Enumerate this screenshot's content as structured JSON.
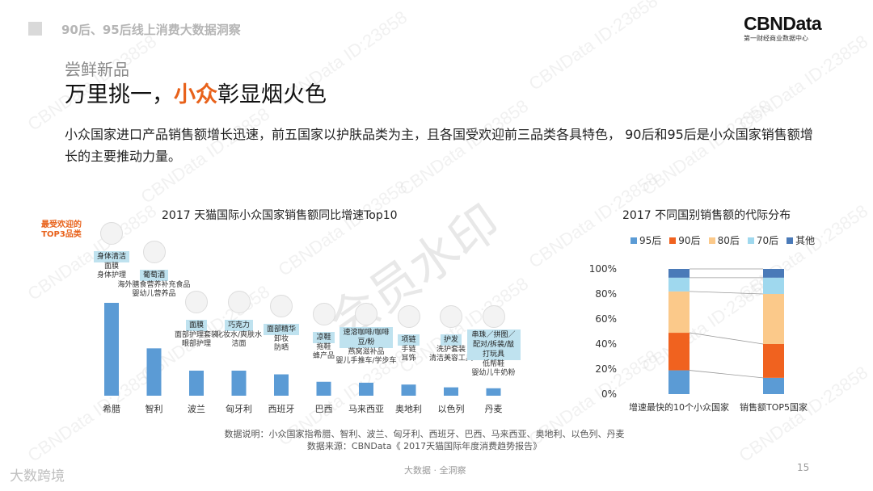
{
  "header": {
    "deck_title": "90后、95后线上消费大数据洞察",
    "logo_main": "CBNData",
    "logo_sub": "第一财经商业数据中心"
  },
  "section_label": "尝鲜新品",
  "headline": {
    "part1": "万里挑一，",
    "highlight": "小众",
    "part2": "彰显烟火色"
  },
  "description": "小众国家进口产品销售额增长迅速，前五国家以护肤品类为主，且各国受欢迎前三品类各具特色， 90后和95后是小众国家销售额增长的主要推动力量。",
  "callout": "最受欢迎的TOP3品类",
  "notes": {
    "definition": "数据说明：小众国家指希腊、智利、波兰、匈牙利、西班牙、巴西、马来西亚、奥地利、以色列、丹麦",
    "source": "数据来源：CBNData《 2017天猫国际年度消费趋势报告》"
  },
  "footer": {
    "left": "大数跨境",
    "center": "大数据 · 全洞察",
    "page": "15"
  },
  "watermark_text": "CBNData ID:23858",
  "watermark_stamp": "会员水印",
  "colors": {
    "bar": "#5b9bd5",
    "accent": "#e8611a",
    "tag_bg": "#bfe2ef",
    "g95": "#5b9bd5",
    "g90": "#f0621f",
    "g80": "#fbc98a",
    "g70": "#9fd8ee",
    "other": "#4a7ab8"
  },
  "chart_data": [
    {
      "type": "bar",
      "title": "2017 天猫国际小众国家销售额同比增速Top10",
      "categories": [
        "希腊",
        "智利",
        "波兰",
        "匈牙利",
        "西班牙",
        "巴西",
        "马来西亚",
        "奥地利",
        "以色列",
        "丹麦"
      ],
      "values": [
        100,
        51,
        27,
        27,
        23,
        15,
        14,
        12,
        9,
        8
      ],
      "top3": [
        {
          "tag": "身体清洁",
          "lines": [
            "面膜",
            "身体护理"
          ]
        },
        {
          "tag": "葡萄酒",
          "lines": [
            "海外膳食营养补充食品",
            "婴幼儿营养品"
          ]
        },
        {
          "tag": "面膜",
          "lines": [
            "面部护理套装",
            "眼部护理"
          ]
        },
        {
          "tag": "巧克力",
          "lines": [
            "化妆水/爽肤水",
            "洁面"
          ]
        },
        {
          "tag": "面部精华",
          "lines": [
            "卸妆",
            "防晒"
          ]
        },
        {
          "tag": "凉鞋",
          "lines": [
            "拖鞋",
            "蜂产品"
          ]
        },
        {
          "tag": "速溶咖啡/咖啡豆/粉",
          "lines": [
            "燕窝滋补品",
            "婴儿手推车/学步车"
          ]
        },
        {
          "tag": "项链",
          "lines": [
            "手链",
            "耳饰"
          ]
        },
        {
          "tag": "护发",
          "lines": [
            "洗护套装",
            "清洁美容工具"
          ]
        },
        {
          "tag": "串珠／拼图／配对/拆装/敲打玩具",
          "lines": [
            "低帮鞋",
            "婴幼儿牛奶粉"
          ]
        }
      ]
    },
    {
      "type": "bar",
      "stacked": true,
      "title": "2017 不同国别销售额的代际分布",
      "categories": [
        "增速最快的10个小众国家",
        "销售额TOP5国家"
      ],
      "series": [
        {
          "name": "95后",
          "values": [
            19,
            13
          ]
        },
        {
          "name": "90后",
          "values": [
            30,
            27
          ]
        },
        {
          "name": "80后",
          "values": [
            33,
            40
          ]
        },
        {
          "name": "70后",
          "values": [
            11,
            13
          ]
        },
        {
          "name": "其他",
          "values": [
            7,
            7
          ]
        }
      ],
      "yticks": [
        "0%",
        "20%",
        "40%",
        "60%",
        "80%",
        "100%"
      ],
      "ylim": [
        0,
        100
      ],
      "legend_position": "top"
    }
  ]
}
